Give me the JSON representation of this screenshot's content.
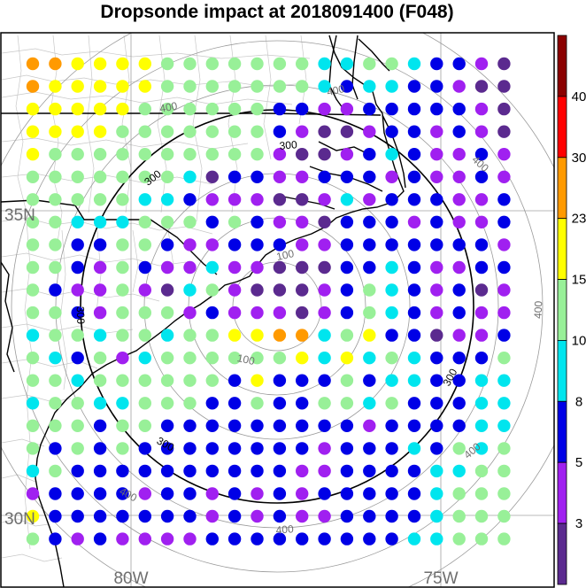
{
  "title": "Dropsonde impact at 2018091400 (F048)",
  "map": {
    "lat_labels": [
      "35N",
      "30N"
    ],
    "lon_labels": [
      "80W",
      "75W"
    ],
    "range_ring_labels": [
      "100",
      "100",
      "300",
      "300",
      "300",
      "300",
      "300",
      "400",
      "400",
      "400",
      "400",
      "400",
      "400",
      "400"
    ],
    "state_boundary_color": "#000000",
    "county_boundary_color": "#c8c8c8",
    "range_ring_color": "#9a9a9a",
    "range_ring_highlight_color": "#000000"
  },
  "chart_data": {
    "type": "heatmap",
    "title": "Dropsonde impact at 2018091400 (F048)",
    "colorbar": {
      "tick_labels": [
        "3",
        "5",
        "8",
        "10",
        "15",
        "23",
        "30",
        "40"
      ],
      "colors": [
        "#5b2a8f",
        "#a020f0",
        "#0000e6",
        "#00e5ee",
        "#98f098",
        "#ffff00",
        "#ff9a00",
        "#ff0000",
        "#8b0000"
      ]
    },
    "color_index_grid": [
      [
        6,
        6,
        5,
        5,
        5,
        5,
        4,
        4,
        4,
        4,
        4,
        4,
        4,
        3,
        3,
        4,
        4,
        3,
        2,
        2,
        1,
        0
      ],
      [
        6,
        5,
        5,
        5,
        5,
        5,
        4,
        4,
        4,
        4,
        4,
        4,
        4,
        3,
        2,
        3,
        3,
        2,
        2,
        1,
        0,
        0
      ],
      [
        5,
        5,
        5,
        5,
        5,
        4,
        4,
        4,
        4,
        4,
        4,
        2,
        2,
        1,
        1,
        2,
        2,
        2,
        2,
        2,
        1,
        0
      ],
      [
        5,
        5,
        5,
        5,
        4,
        4,
        4,
        4,
        4,
        4,
        4,
        2,
        1,
        0,
        0,
        1,
        2,
        2,
        1,
        2,
        1,
        0
      ],
      [
        5,
        4,
        4,
        4,
        4,
        4,
        4,
        4,
        4,
        4,
        4,
        1,
        0,
        0,
        1,
        2,
        3,
        2,
        1,
        1,
        2,
        1
      ],
      [
        4,
        4,
        4,
        4,
        4,
        4,
        4,
        3,
        0,
        2,
        2,
        1,
        1,
        2,
        2,
        2,
        1,
        2,
        1,
        1,
        2,
        1
      ],
      [
        4,
        4,
        4,
        4,
        4,
        3,
        3,
        2,
        1,
        1,
        1,
        0,
        0,
        1,
        3,
        1,
        2,
        2,
        2,
        1,
        1,
        2
      ],
      [
        4,
        4,
        3,
        3,
        3,
        4,
        4,
        4,
        2,
        4,
        2,
        1,
        1,
        0,
        2,
        2,
        2,
        1,
        2,
        1,
        1,
        2
      ],
      [
        4,
        4,
        2,
        2,
        4,
        4,
        2,
        1,
        1,
        2,
        2,
        2,
        1,
        1,
        2,
        2,
        2,
        2,
        2,
        2,
        2,
        1
      ],
      [
        4,
        4,
        2,
        1,
        4,
        2,
        1,
        1,
        3,
        1,
        1,
        0,
        0,
        0,
        2,
        2,
        3,
        2,
        1,
        1,
        2,
        2
      ],
      [
        4,
        2,
        1,
        1,
        4,
        1,
        0,
        3,
        4,
        1,
        0,
        0,
        0,
        1,
        2,
        4,
        3,
        2,
        1,
        2,
        0,
        1
      ],
      [
        4,
        4,
        2,
        1,
        4,
        4,
        4,
        1,
        2,
        1,
        1,
        1,
        0,
        1,
        2,
        4,
        3,
        2,
        1,
        2,
        1,
        1
      ],
      [
        3,
        4,
        4,
        3,
        4,
        4,
        3,
        4,
        4,
        5,
        5,
        6,
        6,
        3,
        4,
        5,
        2,
        2,
        0,
        1,
        1,
        2
      ],
      [
        4,
        3,
        2,
        4,
        1,
        3,
        4,
        4,
        4,
        4,
        4,
        4,
        5,
        3,
        5,
        3,
        4,
        3,
        2,
        2,
        2,
        4
      ],
      [
        4,
        4,
        3,
        4,
        4,
        4,
        4,
        4,
        4,
        2,
        5,
        2,
        2,
        2,
        4,
        2,
        3,
        3,
        2,
        2,
        3,
        3
      ],
      [
        3,
        4,
        4,
        3,
        3,
        4,
        4,
        4,
        2,
        2,
        4,
        2,
        2,
        4,
        4,
        3,
        4,
        2,
        2,
        2,
        3,
        3
      ],
      [
        4,
        4,
        4,
        2,
        4,
        4,
        2,
        2,
        2,
        2,
        2,
        2,
        2,
        2,
        2,
        1,
        2,
        2,
        2,
        2,
        3,
        3
      ],
      [
        4,
        2,
        4,
        2,
        4,
        2,
        2,
        2,
        2,
        2,
        2,
        2,
        2,
        1,
        2,
        2,
        2,
        3,
        2,
        4,
        3,
        4
      ],
      [
        3,
        4,
        2,
        2,
        2,
        2,
        2,
        2,
        2,
        2,
        2,
        2,
        1,
        1,
        2,
        2,
        2,
        2,
        3,
        3,
        4,
        4
      ],
      [
        1,
        2,
        2,
        2,
        2,
        1,
        2,
        2,
        1,
        2,
        1,
        2,
        1,
        2,
        2,
        2,
        2,
        2,
        3,
        4,
        4,
        4
      ],
      [
        5,
        2,
        2,
        2,
        2,
        2,
        2,
        2,
        1,
        2,
        1,
        2,
        1,
        1,
        2,
        2,
        2,
        2,
        3,
        4,
        4,
        4
      ],
      [
        4,
        2,
        1,
        2,
        1,
        1,
        1,
        1,
        2,
        2,
        2,
        2,
        2,
        2,
        2,
        2,
        2,
        3,
        3,
        4,
        4,
        4
      ]
    ]
  }
}
